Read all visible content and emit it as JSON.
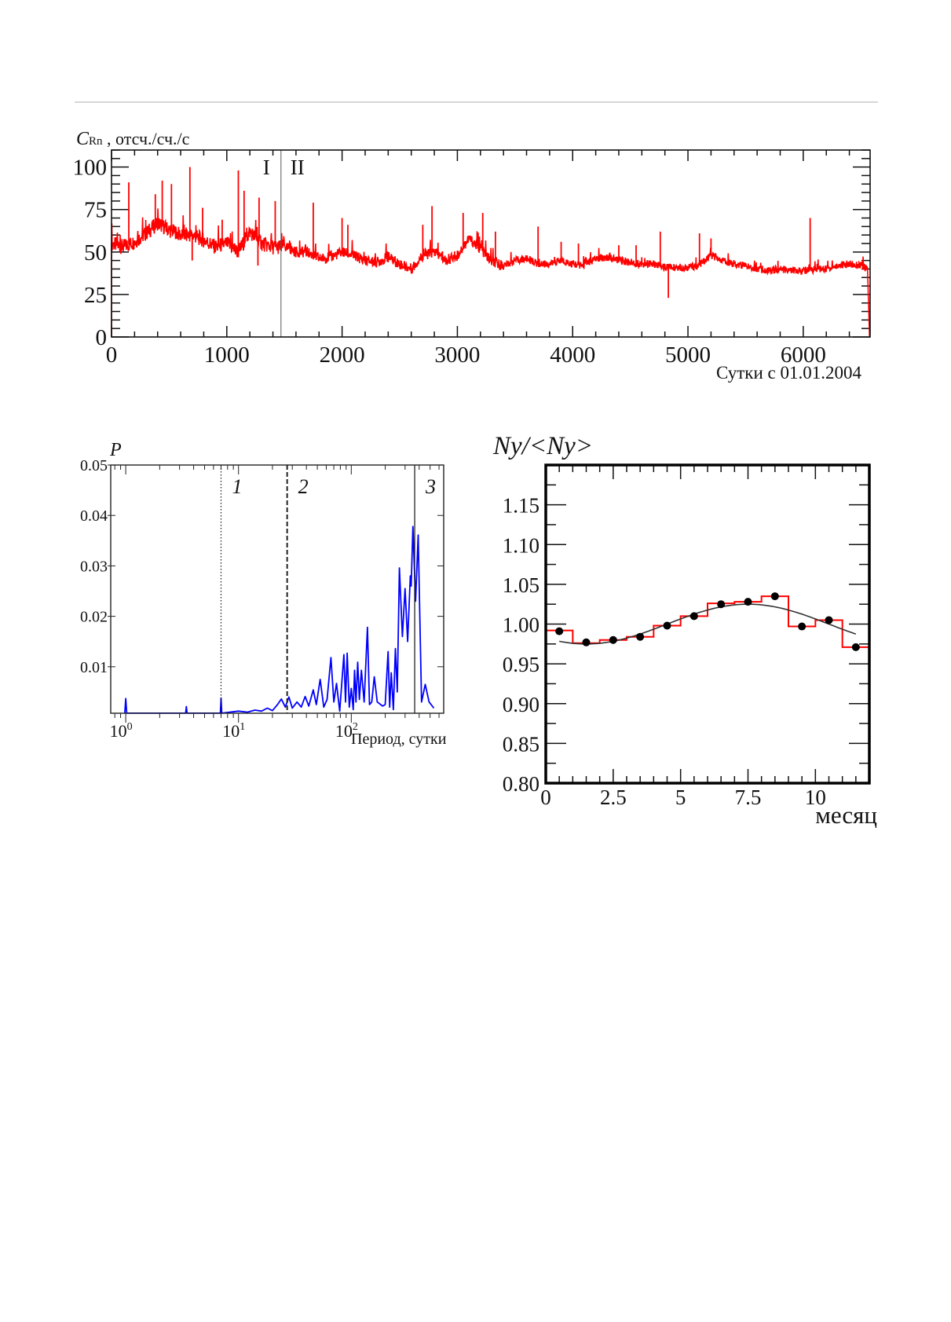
{
  "chart_data": [
    {
      "type": "line",
      "title": "",
      "ylabel_main": "C",
      "ylabel_sub": "Rn",
      "ylabel_rest": " , отсч./сч./с",
      "xlabel": "Сутки с 01.01.2004",
      "xlim": [
        0,
        6580
      ],
      "ylim": [
        0,
        110
      ],
      "xticks": [
        "0",
        "1000",
        "2000",
        "3000",
        "4000",
        "5000",
        "6000"
      ],
      "xtick_values": [
        0,
        1000,
        2000,
        3000,
        4000,
        5000,
        6000
      ],
      "yticks": [
        "0",
        "25",
        "50",
        "75",
        "100"
      ],
      "ytick_values": [
        0,
        25,
        50,
        75,
        100
      ],
      "color": "#ff0000",
      "divider": {
        "x": 1470,
        "left_label": "I",
        "right_label": "II"
      },
      "baseline": {
        "x": [
          0,
          100,
          200,
          300,
          400,
          500,
          600,
          700,
          800,
          900,
          1000,
          1100,
          1200,
          1300,
          1400,
          1500,
          1600,
          1700,
          1800,
          1900,
          2000,
          2100,
          2200,
          2300,
          2400,
          2500,
          2600,
          2700,
          2800,
          2900,
          3000,
          3100,
          3200,
          3300,
          3400,
          3500,
          3600,
          3700,
          3800,
          3900,
          4000,
          4100,
          4200,
          4300,
          4400,
          4500,
          4600,
          4700,
          4800,
          4900,
          5000,
          5100,
          5200,
          5300,
          5400,
          5500,
          5600,
          5700,
          5800,
          5900,
          6000,
          6100,
          6200,
          6300,
          6400,
          6500,
          6560
        ],
        "y": [
          55,
          53,
          56,
          61,
          67,
          63,
          60,
          60,
          57,
          53,
          55,
          50,
          62,
          55,
          53,
          53,
          50,
          50,
          46,
          47,
          50,
          48,
          45,
          44,
          47,
          43,
          40,
          48,
          50,
          45,
          48,
          58,
          52,
          44,
          42,
          45,
          46,
          43,
          43,
          45,
          43,
          42,
          46,
          47,
          45,
          44,
          43,
          43,
          41,
          41,
          41,
          42,
          48,
          45,
          43,
          42,
          40,
          39,
          40,
          39,
          39,
          40,
          40,
          42,
          43,
          42,
          40
        ]
      },
      "spikes": [
        [
          150,
          91
        ],
        [
          380,
          84
        ],
        [
          440,
          92
        ],
        [
          520,
          90
        ],
        [
          680,
          100
        ],
        [
          700,
          45
        ],
        [
          790,
          76
        ],
        [
          960,
          69
        ],
        [
          1100,
          98
        ],
        [
          1150,
          86
        ],
        [
          1270,
          42
        ],
        [
          1280,
          82
        ],
        [
          1420,
          80
        ],
        [
          1750,
          79
        ],
        [
          2000,
          70
        ],
        [
          2050,
          66
        ],
        [
          2700,
          66
        ],
        [
          2780,
          77
        ],
        [
          3050,
          73
        ],
        [
          3220,
          73
        ],
        [
          3330,
          62
        ],
        [
          3700,
          65
        ],
        [
          3900,
          56
        ],
        [
          4050,
          55
        ],
        [
          4400,
          54
        ],
        [
          4550,
          54
        ],
        [
          4760,
          62
        ],
        [
          4830,
          23
        ],
        [
          5100,
          61
        ],
        [
          5200,
          58
        ],
        [
          6060,
          70
        ]
      ],
      "grid": false
    },
    {
      "type": "line",
      "ylabel": "P",
      "xlabel": "Период, сутки",
      "xscale": "log",
      "xlim": [
        0.736,
        660
      ],
      "ylim": [
        0.00078,
        0.05
      ],
      "xticks": [
        {
          "value": 1,
          "base": "10",
          "exp": "0"
        },
        {
          "value": 10,
          "base": "10",
          "exp": "1"
        },
        {
          "value": 100,
          "base": "10",
          "exp": "2"
        }
      ],
      "yticks": [
        "0.01",
        "0.02",
        "0.03",
        "0.04",
        "0.05"
      ],
      "ytick_values": [
        0.01,
        0.02,
        0.03,
        0.04,
        0.05
      ],
      "color": "#0000ff",
      "markers": [
        {
          "label": "1",
          "period": 7,
          "style": "dotted"
        },
        {
          "label": "2",
          "period": 27,
          "style": "dashed"
        },
        {
          "label": "3",
          "period": 365,
          "style": "solid"
        }
      ],
      "series": {
        "x": [
          0.98,
          1.0,
          1.02,
          3.4,
          3.45,
          3.5,
          6.9,
          7.0,
          7.1,
          10,
          12,
          14,
          16,
          18,
          20,
          22,
          24,
          26,
          28,
          30,
          33,
          36,
          39,
          42,
          46,
          49,
          53,
          57,
          61,
          66,
          70,
          74,
          79,
          86,
          89,
          92,
          96,
          100,
          104,
          107,
          110,
          114,
          118,
          123,
          130,
          139,
          145,
          152,
          160,
          170,
          190,
          200,
          212,
          219,
          226,
          236,
          246,
          256,
          267,
          284,
          300,
          316,
          334,
          340,
          352,
          372,
          392,
          420,
          453,
          490,
          540
        ],
        "y": [
          0.0008,
          0.0037,
          0.0008,
          0.0008,
          0.0021,
          0.0008,
          0.0008,
          0.0038,
          0.0008,
          0.0012,
          0.001,
          0.0014,
          0.0012,
          0.0018,
          0.0013,
          0.0024,
          0.0036,
          0.002,
          0.004,
          0.0018,
          0.003,
          0.002,
          0.0041,
          0.0022,
          0.0054,
          0.0025,
          0.0075,
          0.002,
          0.0035,
          0.0118,
          0.003,
          0.0067,
          0.0012,
          0.0124,
          0.003,
          0.0127,
          0.002,
          0.0057,
          0.0015,
          0.0093,
          0.003,
          0.0109,
          0.0035,
          0.0093,
          0.003,
          0.0178,
          0.0025,
          0.003,
          0.008,
          0.003,
          0.0022,
          0.0025,
          0.013,
          0.002,
          0.0088,
          0.0015,
          0.0136,
          0.005,
          0.0296,
          0.016,
          0.0255,
          0.015,
          0.028,
          0.026,
          0.0378,
          0.023,
          0.0361,
          0.003,
          0.0065,
          0.003,
          0.0018
        ]
      }
    },
    {
      "type": "line",
      "title": "Ny/<Ny>",
      "xlabel": "месяц",
      "xlim": [
        0,
        12
      ],
      "ylim": [
        0.8,
        1.2
      ],
      "xticks": [
        "0",
        "2.5",
        "5",
        "7.5",
        "10"
      ],
      "xtick_values": [
        0,
        2.5,
        5,
        7.5,
        10
      ],
      "yticks": [
        "0.80",
        "0.85",
        "0.90",
        "0.95",
        "1.00",
        "1.05",
        "1.10",
        "1.15"
      ],
      "ytick_values": [
        0.8,
        0.85,
        0.9,
        0.95,
        1.0,
        1.05,
        1.1,
        1.15
      ],
      "histogram": {
        "color": "#ff0000",
        "bins": [
          0,
          1,
          2,
          3,
          4,
          5,
          6,
          7,
          8,
          9,
          10,
          11,
          12
        ],
        "values": [
          0.992,
          0.976,
          0.98,
          0.984,
          0.998,
          1.01,
          1.026,
          1.028,
          1.035,
          0.997,
          1.005,
          0.971
        ]
      },
      "points": {
        "x": [
          0.5,
          1.5,
          2.5,
          3.5,
          4.5,
          5.5,
          6.5,
          7.5,
          8.5,
          9.5,
          10.5,
          11.5
        ],
        "y": [
          0.991,
          0.977,
          0.98,
          0.984,
          0.998,
          1.01,
          1.025,
          1.028,
          1.035,
          0.997,
          1.005,
          0.971
        ]
      },
      "fit": {
        "mean": 1.0,
        "amplitude": 0.025,
        "peak_month": 7.5,
        "period": 12,
        "range": [
          0.5,
          11.5
        ],
        "color": "#333333"
      }
    }
  ]
}
